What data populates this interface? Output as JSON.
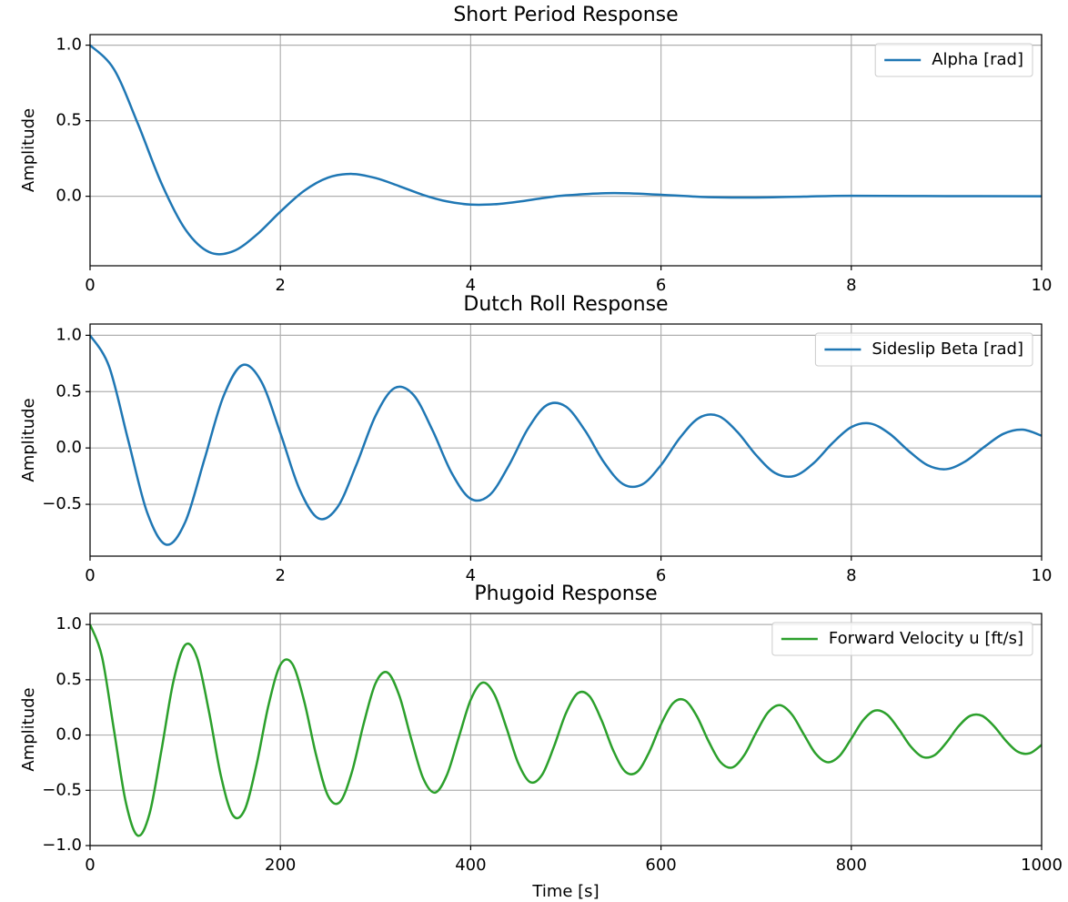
{
  "chart_data": [
    {
      "type": "line",
      "title": "Short Period Response",
      "ylabel": "Amplitude",
      "x": [
        0,
        0.25,
        0.5,
        0.75,
        1.0,
        1.25,
        1.5,
        1.75,
        2.0,
        2.25,
        2.5,
        2.75,
        3.0,
        3.25,
        3.5,
        3.75,
        4.0,
        4.25,
        4.5,
        4.75,
        5.0,
        5.5,
        6.0,
        6.5,
        7.0,
        7.5,
        8.0,
        9.0,
        10.0
      ],
      "series": [
        {
          "name": "Alpha [rad]",
          "color": "#1f77b4",
          "values": [
            1.0,
            0.842,
            0.484,
            0.086,
            -0.218,
            -0.369,
            -0.365,
            -0.255,
            -0.102,
            0.036,
            0.123,
            0.148,
            0.121,
            0.067,
            0.009,
            -0.034,
            -0.055,
            -0.053,
            -0.036,
            -0.013,
            0.006,
            0.021,
            0.01,
            -0.006,
            -0.008,
            -0.002,
            0.003,
            0.001,
            0.0
          ]
        }
      ],
      "xlim": [
        0,
        10
      ],
      "xticks": [
        0,
        2,
        4,
        6,
        8,
        10
      ],
      "ylim": [
        -0.46,
        1.07
      ],
      "yticks": [
        {
          "value": 0,
          "label": "0.0"
        },
        0.5,
        {
          "value": 1,
          "label": "1.0"
        }
      ],
      "grid": true,
      "legend": "upper right"
    },
    {
      "type": "line",
      "title": "Dutch Roll Response",
      "ylabel": "Amplitude",
      "x": [
        0,
        0.2,
        0.4,
        0.6,
        0.8,
        1.0,
        1.2,
        1.4,
        1.6,
        1.8,
        2.0,
        2.2,
        2.4,
        2.6,
        2.8,
        3.0,
        3.2,
        3.4,
        3.6,
        3.8,
        4.0,
        4.2,
        4.4,
        4.6,
        4.8,
        5.0,
        5.2,
        5.4,
        5.6,
        5.8,
        6.0,
        6.2,
        6.4,
        6.6,
        6.8,
        7.0,
        7.2,
        7.4,
        7.6,
        7.8,
        8.0,
        8.2,
        8.4,
        8.6,
        8.8,
        9.0,
        9.2,
        9.4,
        9.6,
        9.8,
        10.0
      ],
      "series": [
        {
          "name": "Sideslip Beta [rad]",
          "color": "#1f77b4",
          "values": [
            1.0,
            0.723,
            0.071,
            -0.573,
            -0.858,
            -0.658,
            -0.107,
            0.454,
            0.735,
            0.589,
            0.132,
            -0.364,
            -0.625,
            -0.526,
            -0.147,
            0.286,
            0.532,
            0.47,
            0.155,
            -0.222,
            -0.451,
            -0.417,
            -0.157,
            0.169,
            0.38,
            0.368,
            0.157,
            -0.126,
            -0.32,
            -0.325,
            -0.152,
            0.091,
            0.267,
            0.285,
            0.145,
            -0.064,
            -0.223,
            -0.249,
            -0.138,
            0.041,
            0.185,
            0.217,
            0.128,
            -0.024,
            -0.152,
            -0.188,
            -0.118,
            0.011,
            0.126,
            0.163,
            0.109
          ]
        }
      ],
      "xlim": [
        0,
        10
      ],
      "xticks": [
        0,
        2,
        4,
        6,
        8,
        10
      ],
      "ylim": [
        -0.96,
        1.1
      ],
      "yticks": [
        {
          "value": -0.5,
          "label": "−0.5"
        },
        {
          "value": 0,
          "label": "0.0"
        },
        0.5,
        {
          "value": 1,
          "label": "1.0"
        }
      ],
      "grid": true,
      "legend": "upper right"
    },
    {
      "type": "line",
      "title": "Phugoid Response",
      "ylabel": "Amplitude",
      "xlabel": "Time [s]",
      "x": [
        0,
        12.5,
        25,
        37.5,
        50,
        62.5,
        75,
        87.5,
        100,
        112.5,
        125,
        137.5,
        150,
        162.5,
        175,
        187.5,
        200,
        212.5,
        225,
        237.5,
        250,
        262.5,
        275,
        287.5,
        300,
        312.5,
        325,
        337.5,
        350,
        362.5,
        375,
        387.5,
        400,
        412.5,
        425,
        437.5,
        450,
        462.5,
        475,
        487.5,
        500,
        512.5,
        525,
        537.5,
        550,
        562.5,
        575,
        587.5,
        600,
        612.5,
        625,
        637.5,
        650,
        662.5,
        675,
        687.5,
        700,
        712.5,
        725,
        737.5,
        750,
        762.5,
        775,
        787.5,
        800,
        812.5,
        825,
        837.5,
        850,
        862.5,
        875,
        887.5,
        900,
        912.5,
        925,
        937.5,
        950,
        962.5,
        975,
        987.5,
        1000
      ],
      "series": [
        {
          "name": "Forward Velocity u [ft/s]",
          "color": "#2ca02c",
          "values": [
            1.0,
            0.71,
            0.052,
            -0.606,
            -0.909,
            -0.712,
            -0.139,
            0.482,
            0.816,
            0.699,
            0.211,
            -0.369,
            -0.725,
            -0.676,
            -0.266,
            0.269,
            0.635,
            0.645,
            0.307,
            -0.179,
            -0.549,
            -0.607,
            -0.34,
            0.101,
            0.468,
            0.566,
            0.356,
            -0.035,
            -0.39,
            -0.521,
            -0.362,
            -0.021,
            0.319,
            0.474,
            0.366,
            0.068,
            -0.255,
            -0.426,
            -0.36,
            -0.105,
            0.195,
            0.378,
            0.35,
            0.135,
            -0.143,
            -0.331,
            -0.333,
            -0.156,
            0.097,
            0.287,
            0.315,
            0.173,
            -0.056,
            -0.245,
            -0.293,
            -0.182,
            0.022,
            0.205,
            0.27,
            0.187,
            0.008,
            -0.168,
            -0.246,
            -0.19,
            -0.032,
            0.135,
            0.222,
            0.186,
            0.052,
            -0.104,
            -0.198,
            -0.182,
            -0.068,
            0.077,
            0.174,
            0.174,
            0.08,
            -0.052,
            -0.151,
            -0.165,
            -0.089
          ]
        }
      ],
      "xlim": [
        0,
        1000
      ],
      "xticks": [
        0,
        200,
        400,
        600,
        800,
        1000
      ],
      "ylim": [
        -1.0,
        1.1
      ],
      "yticks": [
        {
          "value": -1,
          "label": "−1.0"
        },
        {
          "value": -0.5,
          "label": "−0.5"
        },
        {
          "value": 0,
          "label": "0.0"
        },
        0.5,
        {
          "value": 1,
          "label": "1.0"
        }
      ],
      "grid": true,
      "legend": "upper right"
    }
  ]
}
